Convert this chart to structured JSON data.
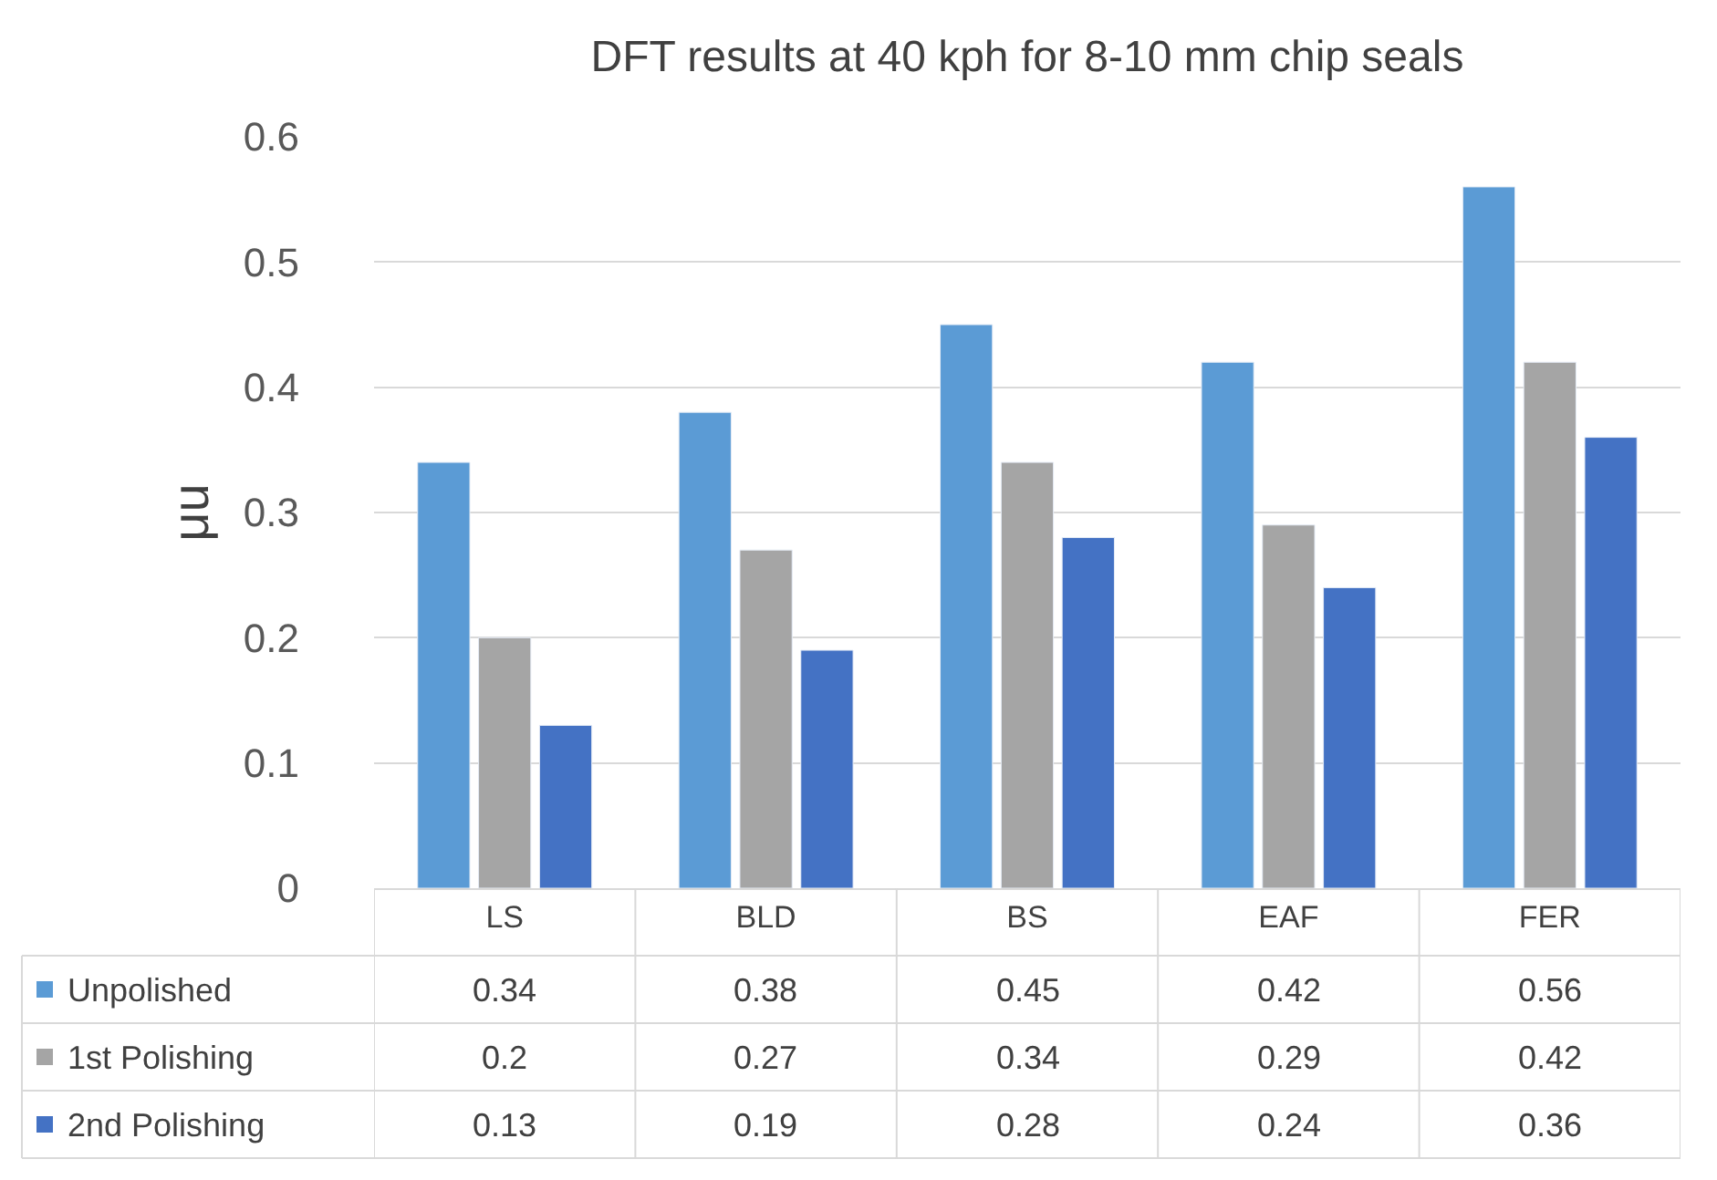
{
  "chart_data": {
    "type": "bar",
    "title": "DFT results at 40 kph for 8-10 mm chip seals",
    "ylabel": "μu",
    "categories": [
      "LS",
      "BLD",
      "BS",
      "EAF",
      "FER"
    ],
    "series": [
      {
        "name": "Unpolished",
        "color": "#5b9bd5",
        "values": [
          0.34,
          0.38,
          0.45,
          0.42,
          0.56
        ]
      },
      {
        "name": "1st Polishing",
        "color": "#a5a5a5",
        "values": [
          0.2,
          0.27,
          0.34,
          0.29,
          0.42
        ]
      },
      {
        "name": "2nd Polishing",
        "color": "#4472c4",
        "values": [
          0.13,
          0.19,
          0.28,
          0.24,
          0.36
        ]
      }
    ],
    "ylim": [
      0,
      0.6
    ],
    "yticks": [
      0,
      0.1,
      0.2,
      0.3,
      0.4,
      0.5,
      0.6
    ],
    "grid": "y",
    "data_labels": true,
    "legend": "bottom"
  }
}
